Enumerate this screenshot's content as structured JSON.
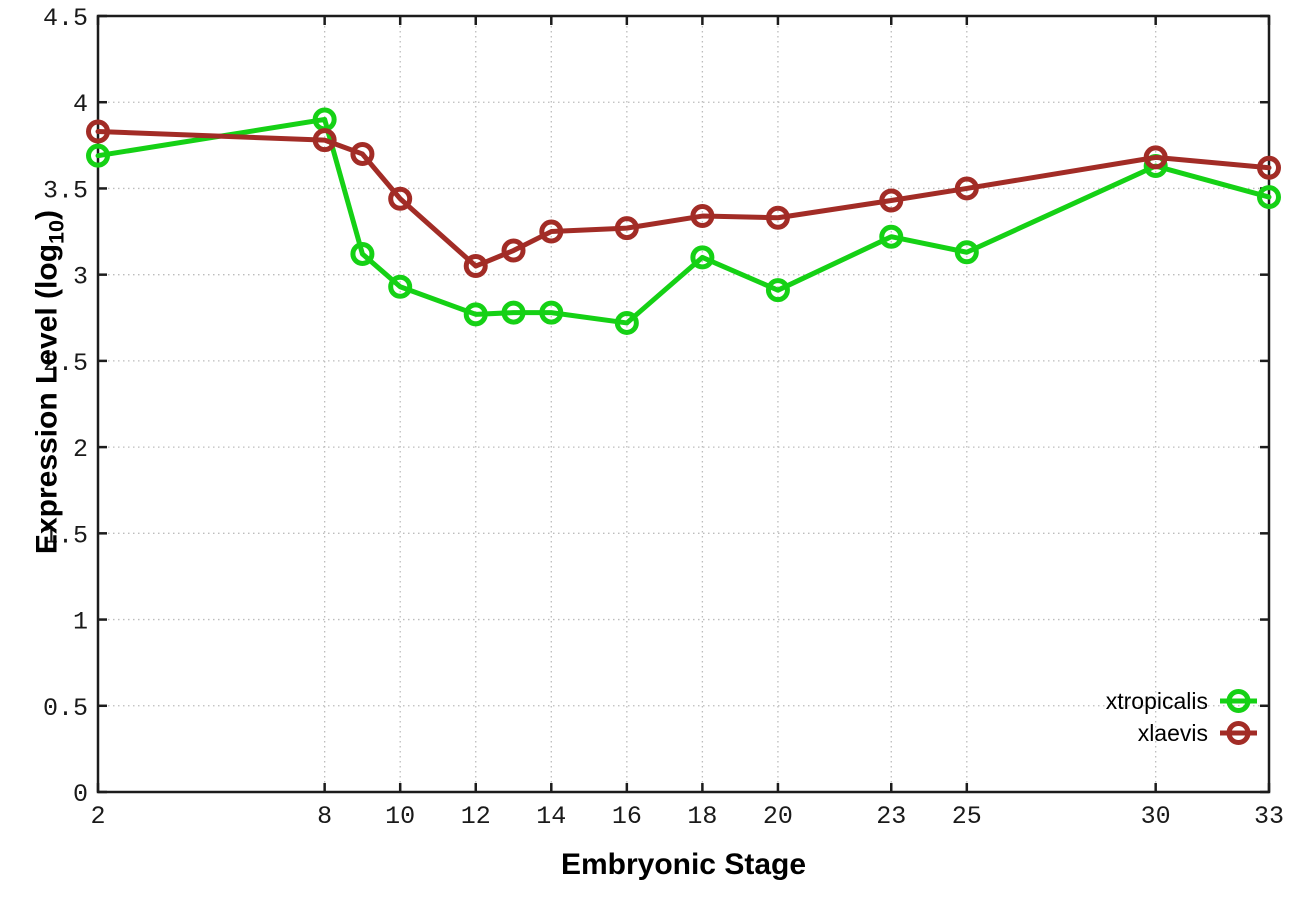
{
  "figure": {
    "background": "#ffffff",
    "border_color": "#1c1c1c",
    "grid_color": "#bcbcbc",
    "tick_color": "#1c1c1c"
  },
  "chart_data": {
    "type": "line",
    "title": "",
    "xlabel": "Embryonic Stage",
    "ylabel": "Expression Level (log10)",
    "ylabel_parts": {
      "main": "Expression Level (log",
      "sub": "10",
      "close": ")"
    },
    "xlim": [
      2,
      33
    ],
    "ylim": [
      0,
      4.5
    ],
    "grid": true,
    "legend_position": "bottom-right",
    "x_ticks": [
      2,
      8,
      10,
      12,
      14,
      16,
      18,
      20,
      23,
      25,
      30,
      33
    ],
    "y_ticks": [
      0,
      0.5,
      1,
      1.5,
      2,
      2.5,
      3,
      3.5,
      4,
      4.5
    ],
    "x": [
      2,
      8,
      9,
      10,
      12,
      13,
      14,
      16,
      18,
      20,
      23,
      25,
      30,
      33
    ],
    "series": [
      {
        "name": "xtropicalis",
        "color": "#15d115",
        "marker": "open-circle",
        "values": [
          3.69,
          3.9,
          3.12,
          2.93,
          2.77,
          2.78,
          2.78,
          2.72,
          3.1,
          2.91,
          3.22,
          3.13,
          3.63,
          3.45
        ]
      },
      {
        "name": "xlaevis",
        "color": "#a22c26",
        "marker": "open-circle",
        "values": [
          3.83,
          3.78,
          3.7,
          3.44,
          3.05,
          3.14,
          3.25,
          3.27,
          3.34,
          3.33,
          3.43,
          3.5,
          3.68,
          3.62
        ]
      }
    ]
  }
}
